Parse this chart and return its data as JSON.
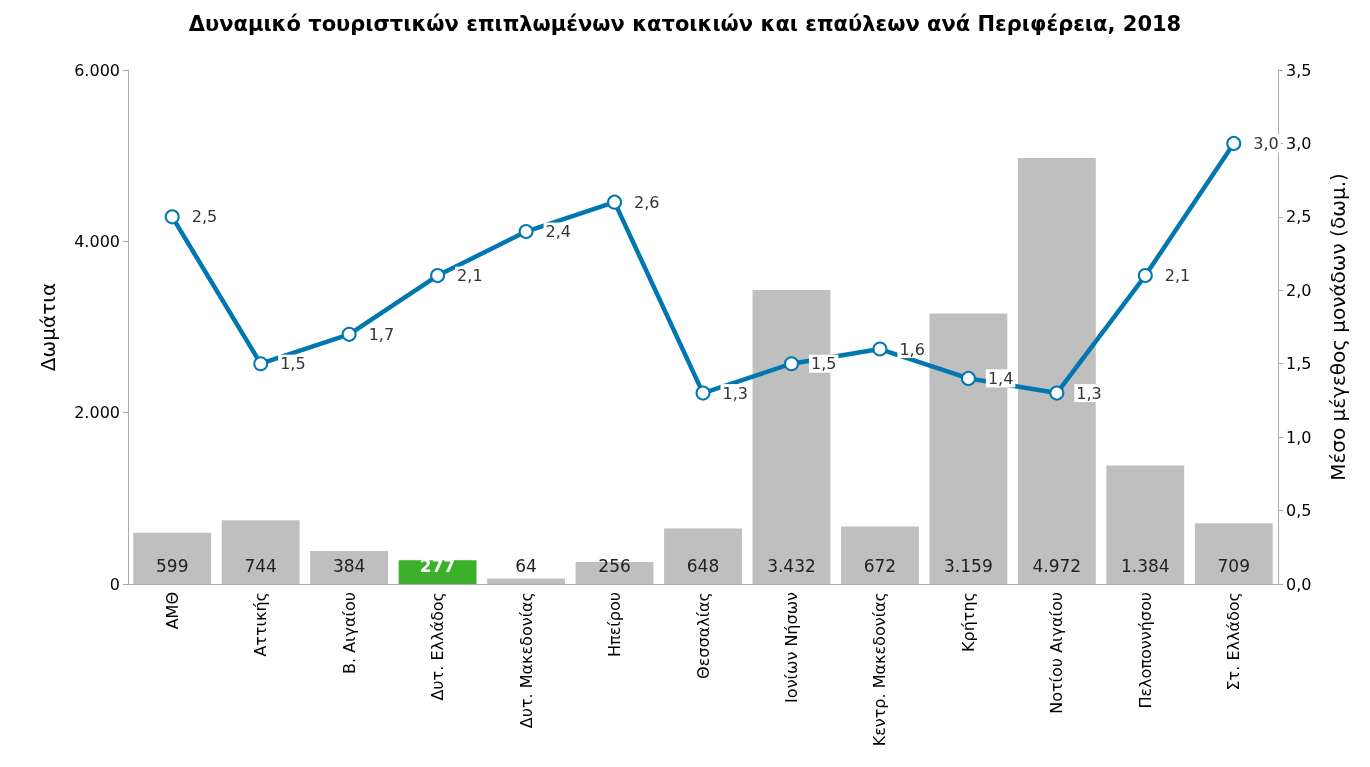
{
  "chart_data": {
    "type": "bar",
    "title": "Δυναμικό τουριστικών επιπλωμένων κατοικιών και επαύλεων ανά Περιφέρεια, 2018",
    "ylabel": "Δωμάτια",
    "y2label": "Μέσο μέγεθος μονάδων (δωμ.)",
    "categories": [
      "ΑΜΘ",
      "Αττικής",
      "Β. Αιγαίου",
      "Δυτ. Ελλάδος",
      "Δυτ. Μακεδονίας",
      "Ηπείρου",
      "Θεσσαλίας",
      "Ιονίων Νήσων",
      "Κεντρ. Μακεδονίας",
      "Κρήτης",
      "Νοτίου Αιγαίου",
      "Πελοποννήσου",
      "Στ. Ελλάδος"
    ],
    "series": [
      {
        "colors": [
          "#bfbfbf",
          "#bfbfbf",
          "#bfbfbf",
          "#3cb02a",
          "#bfbfbf",
          "#bfbfbf",
          "#bfbfbf",
          "#bfbfbf",
          "#bfbfbf",
          "#bfbfbf",
          "#bfbfbf",
          "#bfbfbf",
          "#bfbfbf"
        ],
        "values": [
          599,
          744,
          384,
          277,
          64,
          256,
          648,
          3432,
          672,
          3159,
          4972,
          1384,
          709
        ],
        "value_labels": [
          "599",
          "744",
          "384",
          "277",
          "64",
          "256",
          "648",
          "3.432",
          "672",
          "3.159",
          "4.972",
          "1.384",
          "709"
        ]
      },
      {
        "type": "line",
        "axis": "y2",
        "color": "#0077b0",
        "values": [
          2.5,
          1.5,
          1.7,
          2.1,
          2.4,
          2.6,
          1.3,
          1.5,
          1.6,
          1.4,
          1.3,
          2.1,
          3.0
        ],
        "value_labels": [
          "2,5",
          "1,5",
          "1,7",
          "2,1",
          "2,4",
          "2,6",
          "1,3",
          "1,5",
          "1,6",
          "1,4",
          "1,3",
          "2,1",
          "3,0"
        ]
      }
    ],
    "ylim": [
      0,
      6000
    ],
    "yticks": [
      {
        "value": 0,
        "label": "0"
      },
      {
        "value": 2000,
        "label": "2.000"
      },
      {
        "value": 4000,
        "label": "4.000"
      },
      {
        "value": 6000,
        "label": "6.000"
      }
    ],
    "y2lim": [
      0,
      3.5
    ],
    "y2ticks": [
      {
        "value": 0,
        "label": "0,0"
      },
      {
        "value": 0.5,
        "label": "0,5"
      },
      {
        "value": 1,
        "label": "1,0"
      },
      {
        "value": 1.5,
        "label": "1,5"
      },
      {
        "value": 2,
        "label": "2,0"
      },
      {
        "value": 2.5,
        "label": "2,5"
      },
      {
        "value": 3,
        "label": "3,0"
      },
      {
        "value": 3.5,
        "label": "3,5"
      }
    ],
    "grid": false,
    "marker": "circle",
    "line_style": "solid"
  }
}
